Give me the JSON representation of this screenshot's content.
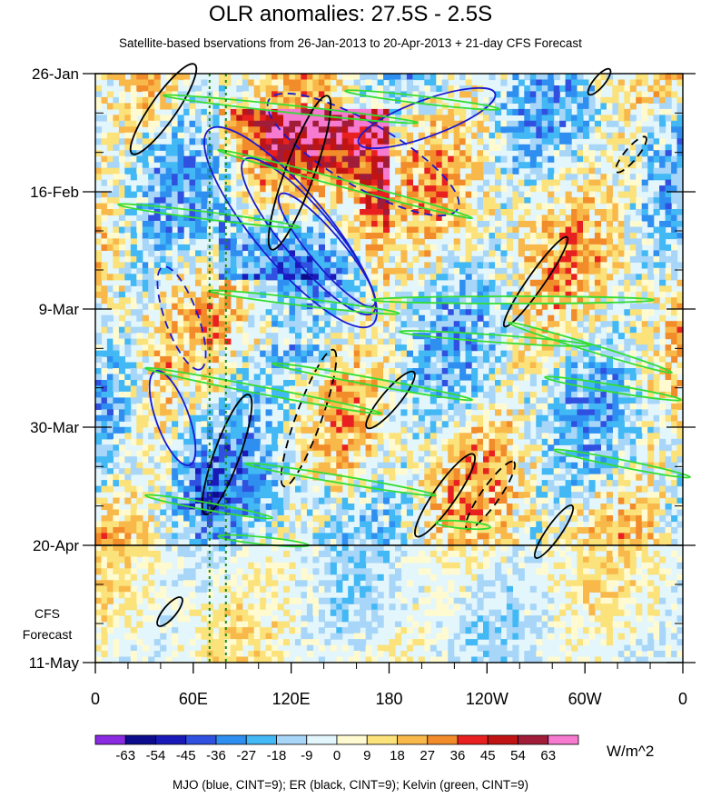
{
  "chart_data": {
    "type": "heatmap",
    "title": "OLR anomalies: 27.5S - 2.5S",
    "subtitle": "Satellite-based bservations from 26-Jan-2013 to 20-Apr-2013 + 21-day CFS Forecast",
    "xlabel": "",
    "ylabel": "",
    "x_ticks": [
      "0",
      "60E",
      "120E",
      "180",
      "120W",
      "60W",
      "0"
    ],
    "y_ticks": [
      "26-Jan",
      "16-Feb",
      "9-Mar",
      "30-Mar",
      "20-Apr",
      "11-May"
    ],
    "forecast_label_line1": "CFS",
    "forecast_label_line2": "Forecast",
    "forecast_start": "20-Apr",
    "colorbar_levels": [
      "-63",
      "-54",
      "-45",
      "-36",
      "-27",
      "-18",
      "-9",
      "0",
      "9",
      "18",
      "27",
      "36",
      "45",
      "54",
      "63"
    ],
    "colorbar_colors": [
      "#8a2be2",
      "#0c0c8c",
      "#1a1ab8",
      "#3050e0",
      "#2f8ff0",
      "#42b8f5",
      "#a8d6f8",
      "#e3f6fb",
      "#fffad0",
      "#fbe27a",
      "#f8b84a",
      "#f28c2b",
      "#e82020",
      "#c01414",
      "#a01c38",
      "#f57ad0"
    ],
    "colorbar_units": "W/m^2",
    "contour_legend": "MJO (blue, CINT=9); ER (black, CINT=9); Kelvin (green, CINT=9)",
    "contour_colors": {
      "MJO": "#1a1ad0",
      "ER": "#000000",
      "Kelvin": "#33dd33"
    },
    "reference_lines_lon": [
      "70E",
      "80E"
    ]
  }
}
